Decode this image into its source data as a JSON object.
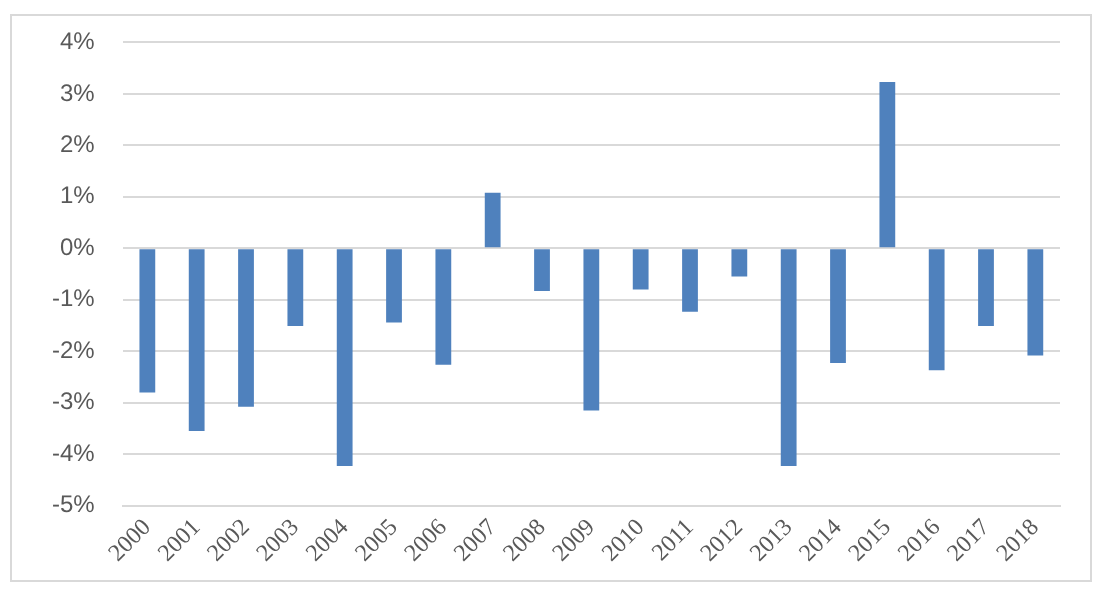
{
  "chart_data": {
    "type": "bar",
    "categories": [
      "2000",
      "2001",
      "2002",
      "2003",
      "2004",
      "2005",
      "2006",
      "2007",
      "2008",
      "2009",
      "2010",
      "2011",
      "2012",
      "2013",
      "2014",
      "2015",
      "2016",
      "2017",
      "2018"
    ],
    "values": [
      -2.8,
      -3.55,
      -3.08,
      -1.51,
      -4.23,
      -1.44,
      -2.26,
      1.08,
      -0.83,
      -3.15,
      -0.8,
      -1.23,
      -0.55,
      -4.23,
      -2.23,
      3.23,
      -2.37,
      -1.51,
      -2.08
    ],
    "color": "#4f81bd",
    "ylim": [
      -5,
      4
    ],
    "yticks": [
      {
        "value": -5,
        "label": "-5%"
      },
      {
        "value": -4,
        "label": "-4%"
      },
      {
        "value": -3,
        "label": "-3%"
      },
      {
        "value": -2,
        "label": "-2%"
      },
      {
        "value": -1,
        "label": "-1%"
      },
      {
        "value": 0,
        "label": "0%"
      },
      {
        "value": 1,
        "label": "1%"
      },
      {
        "value": 2,
        "label": "2%"
      },
      {
        "value": 3,
        "label": "3%"
      },
      {
        "value": 4,
        "label": "4%"
      }
    ],
    "grid": "y",
    "legend": false
  }
}
